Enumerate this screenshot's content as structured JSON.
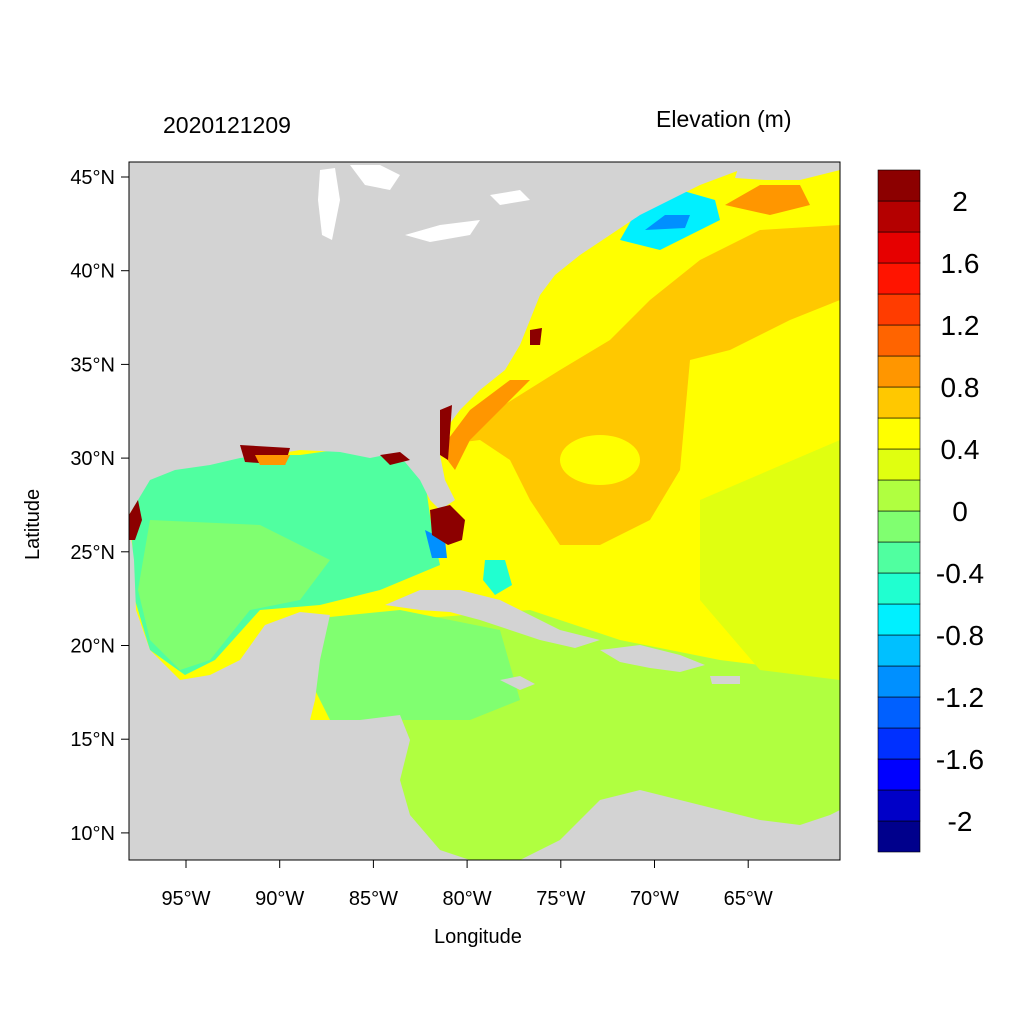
{
  "map": {
    "date_label": "2020121209",
    "variable_label": "Elevation (m)",
    "xlabel": "Longitude",
    "ylabel": "Latitude",
    "lon_ticks": [
      "95°W",
      "90°W",
      "85°W",
      "80°W",
      "75°W",
      "70°W",
      "65°W"
    ],
    "lat_ticks": [
      "45°N",
      "40°N",
      "35°N",
      "30°N",
      "25°N",
      "20°N",
      "15°N",
      "10°N"
    ],
    "land_color": "#d3d3d3"
  },
  "colorbar": {
    "colors": [
      "#00008c",
      "#0000c8",
      "#0000ff",
      "#0030ff",
      "#0060ff",
      "#0090ff",
      "#00c0ff",
      "#00f0ff",
      "#20ffd0",
      "#50ffa0",
      "#80ff70",
      "#b0ff40",
      "#e0ff10",
      "#ffff00",
      "#ffc800",
      "#ff9600",
      "#ff6400",
      "#ff3c00",
      "#ff1400",
      "#e60000",
      "#b40000",
      "#8c0000"
    ],
    "labels": [
      "2",
      "1.6",
      "1.2",
      "0.8",
      "0.4",
      "0",
      "-0.4",
      "-0.8",
      "-1.2",
      "-1.6",
      "-2"
    ]
  }
}
